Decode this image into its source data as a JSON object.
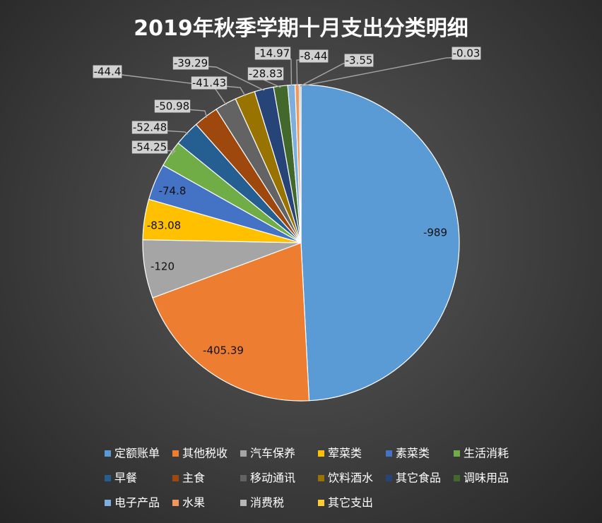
{
  "chart_data": {
    "type": "pie",
    "title": "2019年秋季学期十月支出分类明细",
    "legend_position": "bottom",
    "slices": [
      {
        "name": "定额账单",
        "value": -989,
        "label": "-989",
        "color": "#5b9bd5"
      },
      {
        "name": "其他税收",
        "value": -405.39,
        "label": "-405.39",
        "color": "#ed7d31"
      },
      {
        "name": "汽车保养",
        "value": -120,
        "label": "-120",
        "color": "#a5a5a5"
      },
      {
        "name": "荤菜类",
        "value": -83.08,
        "label": "-83.08",
        "color": "#ffc000"
      },
      {
        "name": "素菜类",
        "value": -74.8,
        "label": "-74.8",
        "color": "#4472c4"
      },
      {
        "name": "生活消耗",
        "value": -54.25,
        "label": "-54.25",
        "color": "#70ad47"
      },
      {
        "name": "早餐",
        "value": -52.48,
        "label": "-52.48",
        "color": "#255e91"
      },
      {
        "name": "主食",
        "value": -50.98,
        "label": "-50.98",
        "color": "#9e480e"
      },
      {
        "name": "移动通讯",
        "value": -44.4,
        "label": "-44.4",
        "color": "#636363"
      },
      {
        "name": "饮料酒水",
        "value": -41.43,
        "label": "-41.43",
        "color": "#997300"
      },
      {
        "name": "其它食品",
        "value": -39.29,
        "label": "-39.29",
        "color": "#264478"
      },
      {
        "name": "调味用品",
        "value": -28.83,
        "label": "-28.83",
        "color": "#43682b"
      },
      {
        "name": "电子产品",
        "value": -14.97,
        "label": "-14.97",
        "color": "#7cafdd"
      },
      {
        "name": "水果",
        "value": -8.44,
        "label": "-8.44",
        "color": "#f1975a"
      },
      {
        "name": "消费税",
        "value": -3.55,
        "label": "-3.55",
        "color": "#b7b7b7"
      },
      {
        "name": "其它支出",
        "value": -0.03,
        "label": "-0.03",
        "color": "#ffcd33"
      }
    ]
  }
}
